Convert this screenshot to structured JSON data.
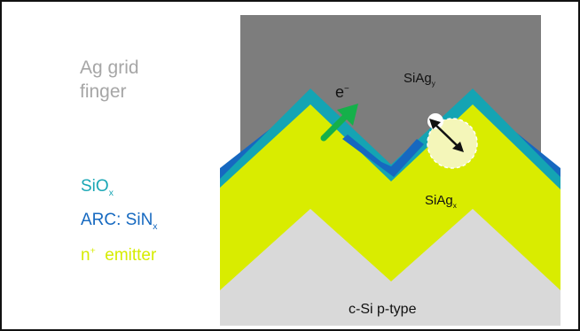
{
  "legend": {
    "ag_line1": "Ag grid",
    "ag_line2": "finger",
    "siox_main": "SiO",
    "siox_sub": "x",
    "arc_main": "ARC: SiN",
    "arc_sub": "x",
    "emitter_sup": "+",
    "emitter_n": "n",
    "emitter_rest": "emitter"
  },
  "diagram": {
    "silver_label_main": "SiAg",
    "silver_label_sub": "y",
    "emitter_label_main": "SiAg",
    "emitter_label_sub": "x",
    "electron_main": "e",
    "electron_sup": "−",
    "substrate_label": "c-Si  p-type"
  },
  "colors": {
    "silver": "#7d7d7d",
    "substrate": "#d9d9d9",
    "emitter": "#d9ec00",
    "sin_arc": "#1668c0",
    "sio_x": "#14a4b3",
    "arrow_green": "#15b04a"
  }
}
